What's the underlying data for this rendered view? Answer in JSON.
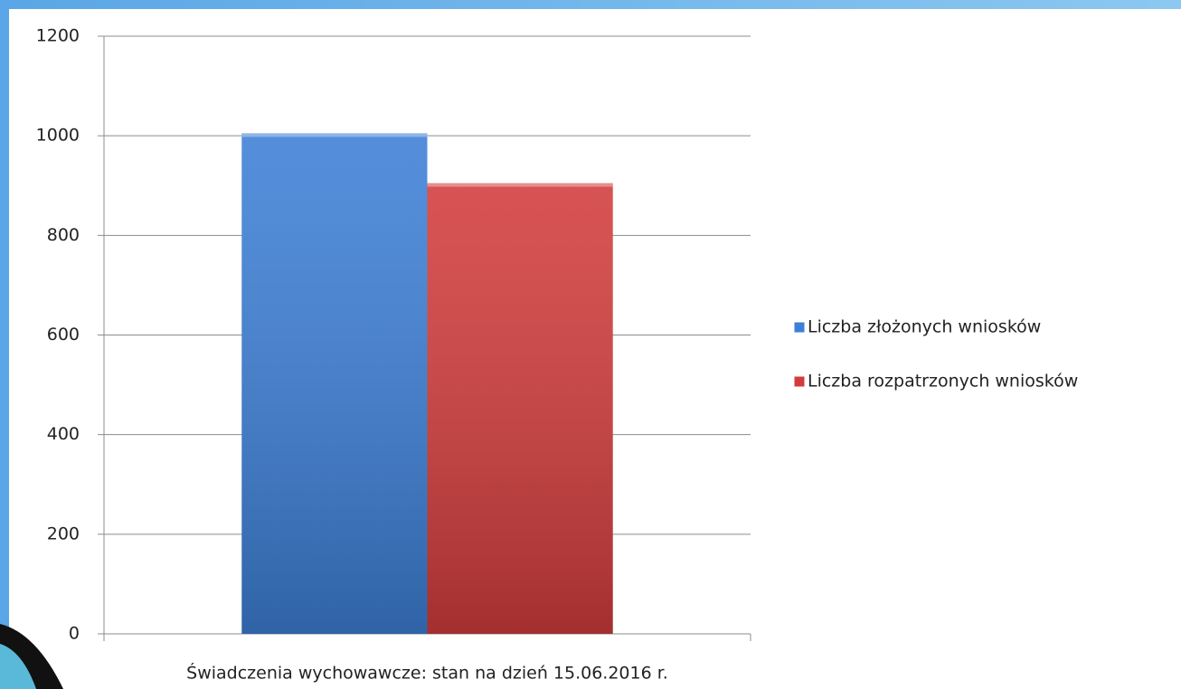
{
  "chart_data": {
    "type": "bar",
    "categories": [
      "Świadczenia wychowawcze: stan na dzień 15.06.2016 r."
    ],
    "series": [
      {
        "name": "Liczba złożonych wniosków",
        "color": "#3d7fd6",
        "values": [
          1005
        ]
      },
      {
        "name": "Liczba rozpatrzonych wniosków",
        "color": "#d23c3c",
        "values": [
          905
        ]
      }
    ],
    "ylim": [
      0,
      1200
    ],
    "yticks": [
      0,
      200,
      400,
      600,
      800,
      1000,
      1200
    ],
    "grid": true,
    "legend": "right"
  }
}
